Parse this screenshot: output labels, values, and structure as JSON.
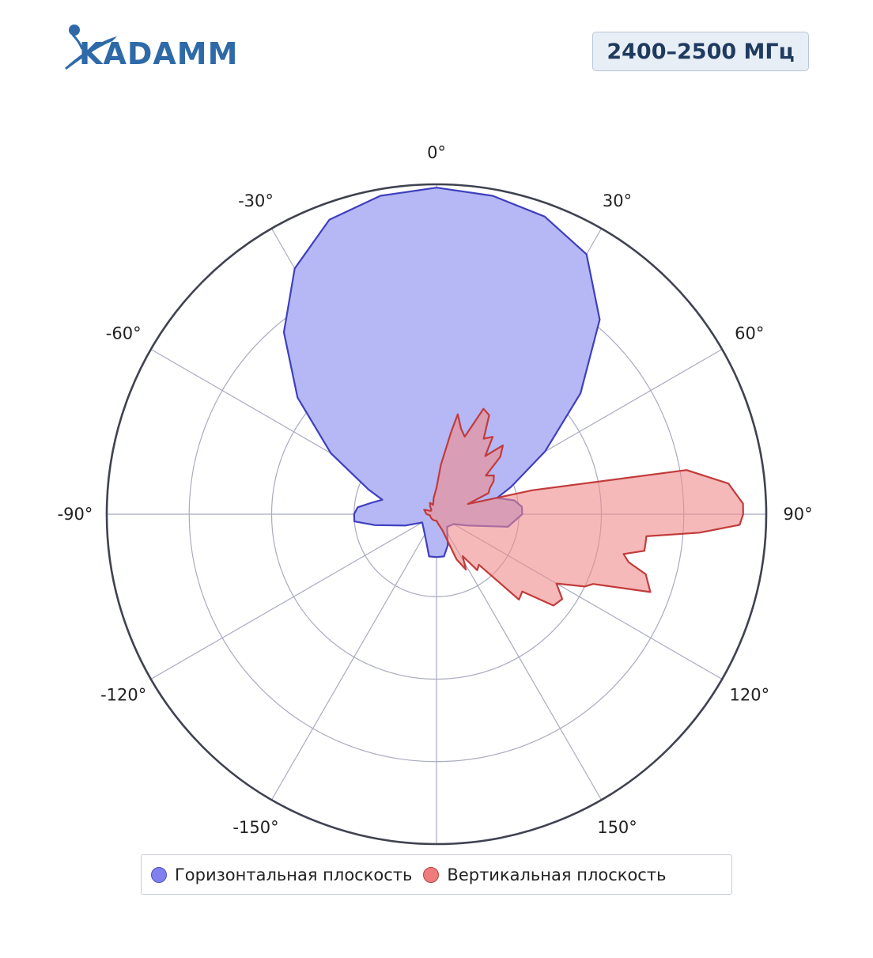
{
  "brand": {
    "name": "KADAMM"
  },
  "badge": {
    "frequency": "2400–2500 МГц"
  },
  "chart_data": {
    "type": "polar",
    "angular_ticks": [
      {
        "angle": 0,
        "label": "0°"
      },
      {
        "angle": 30,
        "label": "30°"
      },
      {
        "angle": 60,
        "label": "60°"
      },
      {
        "angle": 90,
        "label": "90°"
      },
      {
        "angle": 120,
        "label": "120°"
      },
      {
        "angle": 150,
        "label": "150°"
      },
      {
        "angle": -30,
        "label": "-30°"
      },
      {
        "angle": -60,
        "label": "-60°"
      },
      {
        "angle": -90,
        "label": "-90°"
      },
      {
        "angle": -120,
        "label": "-120°"
      },
      {
        "angle": -150,
        "label": "-150°"
      }
    ],
    "radial_range": [
      0,
      1
    ],
    "radial_gridlines": [
      0.25,
      0.5,
      0.75,
      1.0
    ],
    "grid": true,
    "legend_position": "bottom",
    "series": [
      {
        "name": "Горизонтальная плоскость",
        "fill": "#b6b8f5",
        "stroke": "#3f3fbf",
        "angles": [
          0,
          10,
          20,
          30,
          40,
          50,
          60,
          70,
          75,
          80,
          85,
          90,
          100,
          110,
          120,
          140,
          160,
          170,
          180,
          190,
          200,
          220,
          240,
          250,
          260,
          265,
          270,
          275,
          280,
          285,
          290,
          300,
          310,
          320,
          330,
          340,
          350,
          360
        ],
        "values": [
          0.99,
          0.98,
          0.96,
          0.91,
          0.77,
          0.57,
          0.38,
          0.24,
          0.19,
          0.24,
          0.26,
          0.26,
          0.22,
          0.1,
          0.06,
          0.05,
          0.1,
          0.13,
          0.13,
          0.13,
          0.09,
          0.06,
          0.05,
          0.1,
          0.19,
          0.25,
          0.25,
          0.24,
          0.2,
          0.17,
          0.22,
          0.37,
          0.55,
          0.72,
          0.86,
          0.95,
          0.98,
          0.99
        ]
      },
      {
        "name": "Вертикальная плоскость",
        "fill": "#f08a8a",
        "stroke": "#c23b3b",
        "angles": [
          0,
          5,
          10,
          12,
          16,
          20,
          24,
          28,
          32,
          36,
          40,
          44,
          48,
          52,
          56,
          60,
          64,
          68,
          72,
          76,
          80,
          84,
          88,
          90,
          92,
          94,
          96,
          98,
          100,
          102,
          104,
          106,
          110,
          114,
          116,
          120,
          124,
          128,
          132,
          136,
          140,
          144,
          148,
          152,
          156,
          160,
          170,
          180,
          200,
          220,
          240,
          260,
          270,
          290,
          300,
          310,
          320,
          330,
          340,
          350,
          360
        ],
        "values": [
          0.08,
          0.15,
          0.25,
          0.31,
          0.27,
          0.25,
          0.35,
          0.34,
          0.27,
          0.29,
          0.23,
          0.29,
          0.26,
          0.19,
          0.21,
          0.2,
          0.18,
          0.17,
          0.1,
          0.3,
          0.77,
          0.89,
          0.93,
          0.93,
          0.92,
          0.8,
          0.64,
          0.64,
          0.64,
          0.58,
          0.6,
          0.66,
          0.69,
          0.52,
          0.5,
          0.42,
          0.46,
          0.45,
          0.35,
          0.36,
          0.2,
          0.21,
          0.15,
          0.19,
          0.15,
          0.05,
          0.03,
          0.02,
          0.02,
          0.02,
          0.02,
          0.02,
          0.03,
          0.04,
          0.02,
          0.02,
          0.03,
          0.04,
          0.03,
          0.05,
          0.08
        ]
      }
    ]
  }
}
